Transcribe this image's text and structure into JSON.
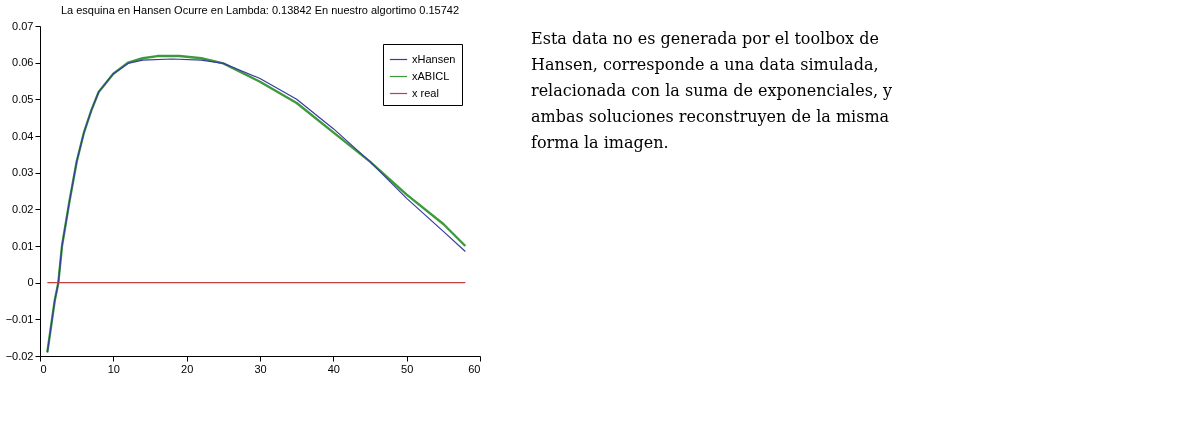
{
  "chart_data": {
    "type": "line",
    "title": "La esquina en Hansen Ocurre en Lambda: 0.13842 En nuestro algortimo 0.15742",
    "xlim": [
      0,
      60
    ],
    "xticks": [
      0,
      10,
      20,
      30,
      40,
      50,
      60
    ],
    "ylim": [
      -0.02,
      0.07
    ],
    "yticks": [
      -0.02,
      -0.01,
      0,
      0.01,
      0.02,
      0.03,
      0.04,
      0.05,
      0.06,
      0.07
    ],
    "grid": false,
    "legend": "top right",
    "marker": "none",
    "line_style": "solid",
    "series": [
      {
        "name": "xHansen",
        "color": "#3a3aa0",
        "x": [
          1,
          2,
          2.5,
          3,
          4,
          5,
          6,
          7,
          8,
          10,
          12,
          14,
          18,
          22,
          25,
          30,
          35,
          40,
          45,
          50,
          55,
          58
        ],
        "values": [
          -0.019,
          -0.005,
          0,
          0.01,
          0.022,
          0.033,
          0.041,
          0.047,
          0.052,
          0.057,
          0.0598,
          0.0607,
          0.061,
          0.0607,
          0.0598,
          0.0557,
          0.05,
          0.042,
          0.033,
          0.023,
          0.014,
          0.0085
        ]
      },
      {
        "name": "xABICL",
        "color": "#3c9a3c",
        "x": [
          1,
          2,
          2.5,
          3,
          4,
          5,
          6,
          7,
          8,
          10,
          12,
          14,
          16,
          19,
          22,
          25,
          30,
          35,
          40,
          45,
          50,
          55,
          58
        ],
        "values": [
          -0.019,
          -0.005,
          0,
          0.01,
          0.022,
          0.033,
          0.041,
          0.047,
          0.052,
          0.057,
          0.06,
          0.0612,
          0.0618,
          0.0618,
          0.0612,
          0.0598,
          0.0548,
          0.049,
          0.041,
          0.033,
          0.024,
          0.016,
          0.01
        ]
      },
      {
        "name": "x real",
        "color": "#c04040",
        "x": [
          1,
          58
        ],
        "values": [
          0,
          0
        ]
      }
    ],
    "annotations": [
      "Esta data no es generada por el toolbox de Hansen, corresponde a una data simulada, relacionada con la suma de exponenciales, y ambas soluciones reconstruyen de la misma forma la imagen."
    ]
  }
}
